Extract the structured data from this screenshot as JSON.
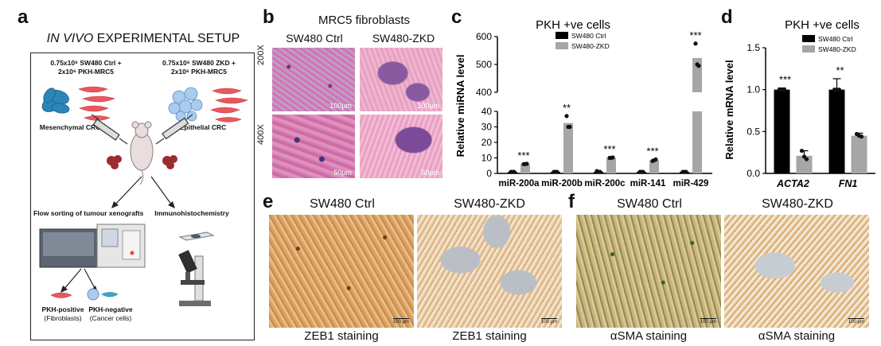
{
  "panel_a": {
    "letter": "a",
    "title_italic": "IN VIVO",
    "title_rest": " EXPERIMENTAL SETUP",
    "left_label_1": "0.75x10⁶ SW480 Ctrl +",
    "left_label_2": "2x10⁶ PKH-MRC5",
    "right_label_1": "0.75x10⁶ SW480 ZKD +",
    "right_label_2": "2x10⁶ PKH-MRC5",
    "mesenchymal": "Mesenchymal CRC",
    "epithelial": "Epithelial CRC",
    "flow_sorting": "Flow sorting of tumour xenografts",
    "ihc": "Immunohistochemistry",
    "pkh_pos_1": "PKH-positive",
    "pkh_pos_2": "(Fibroblasts)",
    "pkh_neg_1": "PKH-negative",
    "pkh_neg_2": "(Cancer cells)"
  },
  "panel_b": {
    "letter": "b",
    "title": "MRC5 fibroblasts",
    "col1": "SW480 Ctrl",
    "col2": "SW480-ZKD",
    "row1": "200X",
    "row2": "400X",
    "scale_100": "100µm",
    "scale_50": "50µm"
  },
  "panel_c": {
    "letter": "c",
    "chart_data": {
      "type": "bar",
      "title": "PKH +ve cells",
      "ylabel": "Relative miRNA level",
      "categories": [
        "miR-200a",
        "miR-200b",
        "miR-200c",
        "miR-141",
        "miR-429"
      ],
      "series": [
        {
          "name": "SW480 Ctrl",
          "color": "#000000",
          "values": [
            1,
            1,
            1,
            1,
            1
          ],
          "points": [
            [
              1,
              1,
              1
            ],
            [
              1,
              1,
              1
            ],
            [
              1.5,
              1,
              1
            ],
            [
              1,
              1,
              1
            ],
            [
              1,
              1,
              1
            ]
          ]
        },
        {
          "name": "SW480-ZKD",
          "color": "#a6a6a6",
          "values": [
            6,
            32.5,
            10,
            8.5,
            523
          ],
          "points": [
            [
              6,
              6,
              6.2
            ],
            [
              37,
              30,
              30
            ],
            [
              10,
              10,
              10.3
            ],
            [
              8,
              8.5,
              9
            ],
            [
              575,
              500,
              495
            ]
          ]
        }
      ],
      "significance": [
        "***",
        "**",
        "***",
        "***",
        "***"
      ],
      "axis_break": {
        "lower": [
          0,
          40
        ],
        "upper": [
          400,
          600
        ]
      },
      "yticks_lower": [
        0,
        10,
        20,
        30,
        40
      ],
      "yticks_upper": [
        400,
        500,
        600
      ],
      "legend": "top-right"
    }
  },
  "panel_d": {
    "letter": "d",
    "chart_data": {
      "type": "bar",
      "title": "PKH +ve cells",
      "ylabel": "Relative mRNA level",
      "categories": [
        "ACTA2",
        "FN1"
      ],
      "series": [
        {
          "name": "SW480 Ctrl",
          "color": "#000000",
          "values": [
            1.0,
            1.0
          ],
          "errors": [
            0.02,
            0.13
          ],
          "points": [
            [
              1.0,
              1.0,
              1.0
            ],
            [
              1.0,
              1.0,
              1.0
            ]
          ]
        },
        {
          "name": "SW480-ZKD",
          "color": "#a6a6a6",
          "values": [
            0.21,
            0.45
          ],
          "errors": [
            0.06,
            0.03
          ],
          "points": [
            [
              0.27,
              0.2,
              0.17
            ],
            [
              0.47,
              0.45,
              0.44
            ]
          ]
        }
      ],
      "significance": [
        "***",
        "**"
      ],
      "ylim": [
        0,
        1.5
      ],
      "yticks": [
        "0.0",
        "0.5",
        "1.0",
        "1.5"
      ],
      "legend": "top-right"
    }
  },
  "panel_e": {
    "letter": "e",
    "col1": "SW480 Ctrl",
    "col2": "SW480-ZKD",
    "caption1": "ZEB1 staining",
    "caption2": "ZEB1 staining",
    "scale": "100 µm"
  },
  "panel_f": {
    "letter": "f",
    "col1": "SW480 Ctrl",
    "col2": "SW480-ZKD",
    "caption1": "αSMA staining",
    "caption2": "αSMA staining",
    "scale": "100 µm"
  }
}
